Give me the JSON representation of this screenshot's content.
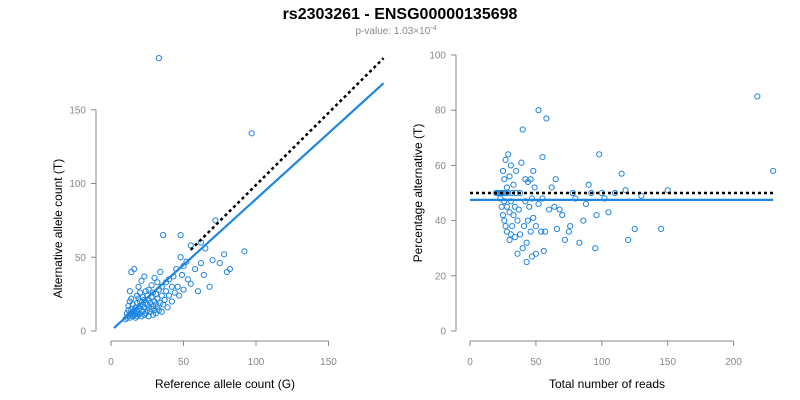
{
  "figure": {
    "title": "rs2303261 - ENSG00000135698",
    "subtitle_prefix": "p-value: 1.03×10",
    "subtitle_exponent": "-4"
  },
  "colors": {
    "points": "#1f86e0",
    "fit_line": "#1f86e0",
    "reference_line": "#000000",
    "axes": "#888888"
  },
  "chart_data": [
    {
      "type": "scatter",
      "xlabel": "Reference allele count (G)",
      "ylabel": "Alternative allele count (T)",
      "xlim": [
        0,
        180
      ],
      "ylim": [
        0,
        185
      ],
      "xticks": [
        0,
        50,
        100,
        150
      ],
      "yticks": [
        0,
        50,
        100,
        150
      ],
      "grid": false,
      "points": [
        [
          10,
          8
        ],
        [
          11,
          9
        ],
        [
          11,
          12
        ],
        [
          12,
          10
        ],
        [
          12,
          14
        ],
        [
          12,
          17
        ],
        [
          13,
          9
        ],
        [
          13,
          11
        ],
        [
          13,
          20
        ],
        [
          13,
          27
        ],
        [
          14,
          12
        ],
        [
          14,
          15
        ],
        [
          14,
          22
        ],
        [
          14,
          40
        ],
        [
          15,
          10
        ],
        [
          15,
          13
        ],
        [
          15,
          18
        ],
        [
          16,
          11
        ],
        [
          16,
          14
        ],
        [
          16,
          42
        ],
        [
          17,
          9
        ],
        [
          17,
          12
        ],
        [
          17,
          16
        ],
        [
          18,
          10
        ],
        [
          18,
          13
        ],
        [
          18,
          19
        ],
        [
          18,
          24
        ],
        [
          19,
          11
        ],
        [
          19,
          15
        ],
        [
          19,
          22
        ],
        [
          19,
          30
        ],
        [
          20,
          12
        ],
        [
          20,
          17
        ],
        [
          20,
          20
        ],
        [
          20,
          26
        ],
        [
          21,
          10
        ],
        [
          21,
          14
        ],
        [
          21,
          34
        ],
        [
          22,
          13
        ],
        [
          22,
          18
        ],
        [
          22,
          23
        ],
        [
          23,
          11
        ],
        [
          23,
          16
        ],
        [
          23,
          21
        ],
        [
          23,
          37
        ],
        [
          24,
          12
        ],
        [
          24,
          19
        ],
        [
          24,
          27
        ],
        [
          25,
          14
        ],
        [
          25,
          18
        ],
        [
          25,
          24
        ],
        [
          26,
          10
        ],
        [
          26,
          16
        ],
        [
          26,
          21
        ],
        [
          26,
          28
        ],
        [
          27,
          13
        ],
        [
          27,
          19
        ],
        [
          28,
          15
        ],
        [
          28,
          23
        ],
        [
          28,
          31
        ],
        [
          29,
          11
        ],
        [
          29,
          17
        ],
        [
          29,
          26
        ],
        [
          30,
          14
        ],
        [
          30,
          20
        ],
        [
          30,
          36
        ],
        [
          31,
          12
        ],
        [
          31,
          18
        ],
        [
          31,
          25
        ],
        [
          32,
          16
        ],
        [
          32,
          22
        ],
        [
          32,
          33
        ],
        [
          33,
          14
        ],
        [
          33,
          28
        ],
        [
          33,
          185
        ],
        [
          34,
          19
        ],
        [
          34,
          40
        ],
        [
          35,
          13
        ],
        [
          35,
          24
        ],
        [
          35,
          30
        ],
        [
          36,
          18
        ],
        [
          36,
          65
        ],
        [
          37,
          21
        ],
        [
          38,
          27
        ],
        [
          38,
          33
        ],
        [
          39,
          16
        ],
        [
          40,
          24
        ],
        [
          40,
          35
        ],
        [
          42,
          20
        ],
        [
          42,
          30
        ],
        [
          43,
          37
        ],
        [
          44,
          26
        ],
        [
          45,
          42
        ],
        [
          46,
          30
        ],
        [
          47,
          24
        ],
        [
          48,
          50
        ],
        [
          48,
          65
        ],
        [
          49,
          38
        ],
        [
          50,
          28
        ],
        [
          50,
          44
        ],
        [
          52,
          47
        ],
        [
          53,
          35
        ],
        [
          55,
          32
        ],
        [
          55,
          58
        ],
        [
          58,
          42
        ],
        [
          60,
          27
        ],
        [
          62,
          46
        ],
        [
          62,
          60
        ],
        [
          64,
          38
        ],
        [
          65,
          56
        ],
        [
          68,
          30
        ],
        [
          70,
          48
        ],
        [
          72,
          75
        ],
        [
          75,
          46
        ],
        [
          78,
          52
        ],
        [
          80,
          40
        ],
        [
          82,
          42
        ],
        [
          92,
          54
        ],
        [
          97,
          134
        ]
      ],
      "fit_line": {
        "x": [
          2,
          188
        ],
        "y": [
          2,
          168
        ]
      },
      "reference_line": {
        "x": [
          55,
          188
        ],
        "y": [
          55,
          185
        ]
      }
    },
    {
      "type": "scatter",
      "xlabel": "Total number of reads",
      "ylabel": "Percentage alternative (T)",
      "xlim": [
        0,
        230
      ],
      "ylim": [
        0,
        100
      ],
      "xticks": [
        0,
        50,
        100,
        150,
        200
      ],
      "yticks": [
        0,
        20,
        40,
        60,
        80,
        100
      ],
      "grid": false,
      "points": [
        [
          20,
          50
        ],
        [
          20,
          50
        ],
        [
          21,
          50
        ],
        [
          21,
          50
        ],
        [
          22,
          50
        ],
        [
          22,
          50
        ],
        [
          23,
          50
        ],
        [
          23,
          48
        ],
        [
          24,
          45
        ],
        [
          24,
          50
        ],
        [
          25,
          42
        ],
        [
          25,
          50
        ],
        [
          25,
          58
        ],
        [
          26,
          40
        ],
        [
          26,
          47
        ],
        [
          26,
          55
        ],
        [
          27,
          38
        ],
        [
          27,
          50
        ],
        [
          27,
          62
        ],
        [
          28,
          36
        ],
        [
          28,
          45
        ],
        [
          28,
          52
        ],
        [
          29,
          50
        ],
        [
          29,
          64
        ],
        [
          30,
          33
        ],
        [
          30,
          43
        ],
        [
          30,
          56
        ],
        [
          31,
          35
        ],
        [
          31,
          47
        ],
        [
          31,
          60
        ],
        [
          32,
          38
        ],
        [
          32,
          50
        ],
        [
          33,
          42
        ],
        [
          33,
          53
        ],
        [
          34,
          34
        ],
        [
          34,
          45
        ],
        [
          35,
          50
        ],
        [
          35,
          58
        ],
        [
          36,
          28
        ],
        [
          36,
          40
        ],
        [
          37,
          44
        ],
        [
          38,
          35
        ],
        [
          38,
          50
        ],
        [
          39,
          61
        ],
        [
          40,
          73
        ],
        [
          40,
          30
        ],
        [
          41,
          38
        ],
        [
          42,
          47
        ],
        [
          42,
          55
        ],
        [
          43,
          25
        ],
        [
          43,
          32
        ],
        [
          44,
          40
        ],
        [
          44,
          54
        ],
        [
          45,
          45
        ],
        [
          46,
          36
        ],
        [
          46,
          55
        ],
        [
          47,
          27
        ],
        [
          47,
          48
        ],
        [
          48,
          41
        ],
        [
          48,
          58
        ],
        [
          49,
          52
        ],
        [
          50,
          28
        ],
        [
          50,
          38
        ],
        [
          52,
          46
        ],
        [
          52,
          80
        ],
        [
          54,
          36
        ],
        [
          55,
          48
        ],
        [
          55,
          63
        ],
        [
          56,
          29
        ],
        [
          57,
          36
        ],
        [
          58,
          77
        ],
        [
          60,
          44
        ],
        [
          62,
          52
        ],
        [
          64,
          45
        ],
        [
          65,
          55
        ],
        [
          66,
          37
        ],
        [
          68,
          44
        ],
        [
          70,
          42
        ],
        [
          72,
          33
        ],
        [
          75,
          36
        ],
        [
          76,
          38
        ],
        [
          78,
          50
        ],
        [
          80,
          48
        ],
        [
          83,
          32
        ],
        [
          86,
          40
        ],
        [
          88,
          46
        ],
        [
          90,
          53
        ],
        [
          92,
          50
        ],
        [
          95,
          30
        ],
        [
          96,
          42
        ],
        [
          98,
          64
        ],
        [
          100,
          50
        ],
        [
          102,
          48
        ],
        [
          105,
          43
        ],
        [
          110,
          50
        ],
        [
          115,
          57
        ],
        [
          118,
          51
        ],
        [
          120,
          33
        ],
        [
          125,
          37
        ],
        [
          130,
          49
        ],
        [
          145,
          37
        ],
        [
          150,
          51
        ],
        [
          218,
          85
        ],
        [
          230,
          58
        ]
      ],
      "fit_line": {
        "x": [
          0,
          230
        ],
        "y": [
          47.5,
          47.5
        ]
      },
      "reference_line": {
        "x": [
          0,
          230
        ],
        "y": [
          50,
          50
        ]
      }
    }
  ]
}
